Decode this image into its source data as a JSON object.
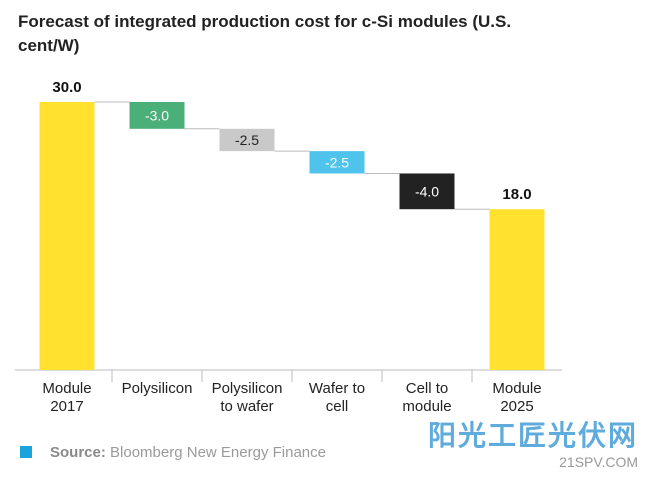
{
  "chart_data": {
    "type": "waterfall",
    "title": "Forecast of integrated production cost for c-Si modules (U.S. cent/W)",
    "categories": [
      "Module\n2017",
      "Polysilicon",
      "Polysilicon\nto wafer",
      "Wafer to\ncell",
      "Cell to\nmodule",
      "Module\n2025"
    ],
    "values": [
      30,
      -3,
      -2.5,
      -2.5,
      -4,
      18
    ],
    "value_labels": [
      "30.0",
      "-3.0",
      "-2.5",
      "-2.5",
      "-4.0",
      "18.0"
    ],
    "colors": [
      "#ffe12e",
      "#4aaf78",
      "#c9c9c9",
      "#4fc3ec",
      "#222222",
      "#ffe12e"
    ],
    "source_label": "Source:",
    "source": "Bloomberg New Energy Finance"
  },
  "watermark": {
    "name": "阳光工匠光伏网",
    "url": "21SPV.COM"
  }
}
